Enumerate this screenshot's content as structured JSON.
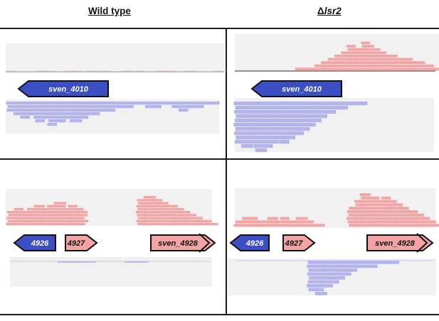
{
  "headers": {
    "wild_type": "Wild type",
    "mutant_symbol": "Δ",
    "mutant_gene": "lsr2"
  },
  "genes": {
    "top": "sven_4010",
    "bottom_1": "4926",
    "bottom_2": "4927",
    "bottom_3": "sven_4928"
  },
  "colors": {
    "forward_reads": "#f2a5a5",
    "reverse_reads": "#b3b3ee",
    "forward_gene": "#f4a3a3",
    "reverse_gene": "#3b4ec4",
    "track_bg": "#f1f1f1",
    "frame": "#1a1a1a"
  },
  "panels": {
    "wt_top": {
      "forward_coverage": [
        1,
        0,
        0,
        0,
        1,
        1,
        0,
        0,
        1,
        1,
        0,
        1,
        0,
        1,
        0,
        0,
        1,
        0,
        1,
        0,
        0,
        1,
        1,
        0,
        0,
        1,
        0,
        0,
        0,
        1
      ],
      "reverse_coverage": [
        3,
        4,
        5,
        4,
        6,
        5,
        7,
        6,
        5,
        6,
        5,
        4,
        4,
        3,
        3,
        2,
        2,
        2,
        1,
        1,
        2,
        2,
        1,
        1,
        2,
        3,
        2,
        2,
        1,
        1
      ]
    },
    "ko_top": {
      "forward_coverage": [
        0,
        0,
        0,
        0,
        0,
        0,
        0,
        0,
        0,
        1,
        1,
        1,
        2,
        3,
        4,
        5,
        6,
        8,
        7,
        9,
        7,
        6,
        5,
        5,
        4,
        4,
        3,
        3,
        2,
        1
      ],
      "reverse_coverage": [
        10,
        11,
        10,
        12,
        11,
        10,
        9,
        10,
        9,
        8,
        7,
        6,
        5,
        4,
        3,
        2,
        2,
        1,
        1,
        1,
        0,
        0,
        0,
        0,
        0,
        0,
        0,
        0,
        0,
        0
      ]
    },
    "wt_bottom": {
      "forward_coverage": [
        5,
        6,
        5,
        6,
        7,
        6,
        7,
        8,
        6,
        7,
        6,
        0,
        0,
        0,
        0,
        0,
        0,
        0,
        0,
        9,
        10,
        9,
        8,
        7,
        6,
        5,
        4,
        3,
        2,
        1
      ],
      "reverse_coverage": [
        0,
        0,
        0,
        0,
        0,
        0,
        0,
        1,
        1,
        1,
        1,
        1,
        0,
        0,
        0,
        0,
        0,
        1,
        1,
        1,
        0,
        0,
        0,
        0,
        0,
        0,
        0,
        0,
        0,
        0
      ]
    },
    "ko_bottom": {
      "forward_coverage": [
        2,
        3,
        3,
        2,
        2,
        3,
        2,
        3,
        2,
        3,
        2,
        1,
        1,
        0,
        0,
        0,
        0,
        6,
        8,
        10,
        9,
        8,
        9,
        8,
        7,
        6,
        5,
        4,
        3,
        2
      ],
      "reverse_coverage": [
        0,
        0,
        0,
        0,
        0,
        0,
        0,
        0,
        0,
        0,
        0,
        8,
        9,
        7,
        6,
        5,
        4,
        3,
        2,
        2,
        2,
        1,
        1,
        1,
        0,
        0,
        0,
        0,
        0,
        0
      ]
    }
  }
}
